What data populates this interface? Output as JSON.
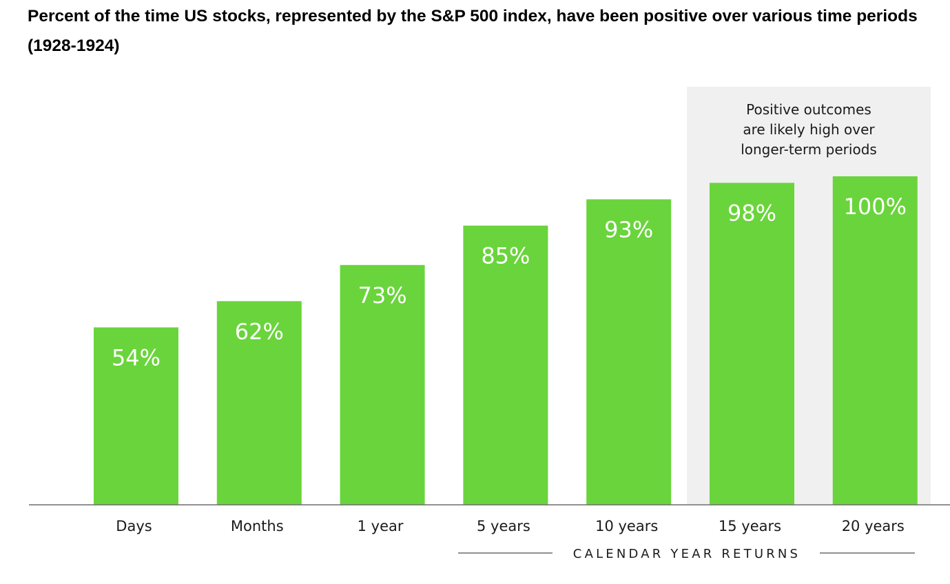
{
  "title": "Percent of the time US stocks, represented by the S&P 500 index, have been positive over various time periods (1928-1924)",
  "chart_data": {
    "type": "bar",
    "title": "Percent of the time US stocks, represented by the S&P 500 index, have been positive over various time periods (1928-1924)",
    "categories": [
      "Days",
      "Months",
      "1 year",
      "5 years",
      "10 years",
      "15 years",
      "20 years"
    ],
    "values": [
      54,
      62,
      73,
      85,
      93,
      98,
      100
    ],
    "value_labels": [
      "54%",
      "62%",
      "73%",
      "85%",
      "93%",
      "98%",
      "100%"
    ],
    "xlabel": "CALENDAR YEAR RETURNS",
    "ylabel": "",
    "ylim": [
      0,
      100
    ],
    "grid": false,
    "annotation": {
      "lines": [
        "Positive outcomes",
        "are likely high over",
        "longer-term periods"
      ],
      "highlighted_categories": [
        "15 years",
        "20 years"
      ]
    },
    "colors": {
      "bar": "#6ad43c",
      "highlight_panel": "#f0f0f0",
      "axis": "#6b6b6b"
    }
  }
}
